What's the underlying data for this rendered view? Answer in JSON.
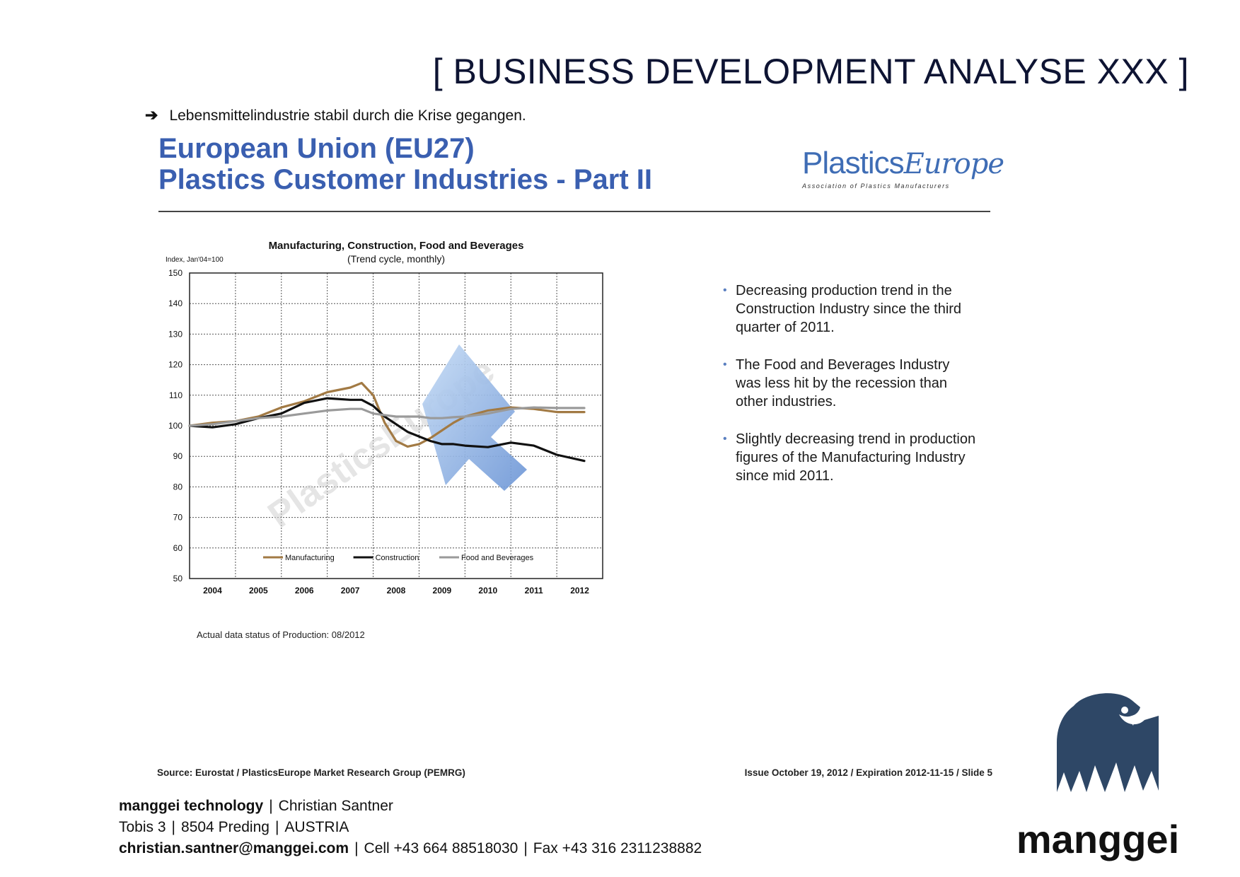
{
  "header": {
    "title": "[ BUSINESS DEVELOPMENT ANALYSE XXX ]"
  },
  "intro": {
    "arrow": "➔",
    "text": "Lebensmittelindustrie stabil durch die Krise gegangen."
  },
  "slide": {
    "title_line1": "European Union (EU27)",
    "title_line2": "Plastics Customer Industries - Part II",
    "logo_word_a": "Plastics",
    "logo_word_b": "Europe",
    "logo_tagline": "Association of Plastics Manufacturers",
    "bullets": [
      "Decreasing production trend in the Construction Industry since the third quarter of 2011.",
      "The Food and Beverages Industry was less hit by the recession than other industries.",
      "Slightly decreasing trend in production figures of the Manufacturing Industry since mid 2011."
    ],
    "bullet_mark": "•",
    "source": "Source: Eurostat / PlasticsEurope Market Research Group (PEMRG)",
    "issue": "Issue October 19, 2012 / Expiration 2012-11-15 / Slide 5",
    "data_status": "Actual data status of Production: 08/2012",
    "watermark": "PlasticsEurope"
  },
  "chart_data": {
    "type": "line",
    "title": "Manufacturing, Construction, Food and Beverages",
    "subtitle": "(Trend cycle, monthly)",
    "ylabel": "Index, Jan'04=100",
    "xlabel": "",
    "ylim": [
      50,
      150
    ],
    "yticks": [
      50,
      60,
      70,
      80,
      90,
      100,
      110,
      120,
      130,
      140,
      150
    ],
    "xlim": [
      2004.0,
      2013.0
    ],
    "xticks": [
      "2004",
      "2005",
      "2006",
      "2007",
      "2008",
      "2009",
      "2010",
      "2011",
      "2012"
    ],
    "grid": true,
    "legend_position": "bottom-inside",
    "series": [
      {
        "name": "Manufacturing",
        "color": "#a27a44",
        "x": [
          2004.0,
          2004.5,
          2005.0,
          2005.5,
          2006.0,
          2006.5,
          2007.0,
          2007.5,
          2007.75,
          2008.0,
          2008.25,
          2008.5,
          2008.75,
          2009.0,
          2009.25,
          2009.5,
          2009.75,
          2010.0,
          2010.5,
          2011.0,
          2011.5,
          2012.0,
          2012.6
        ],
        "values": [
          100,
          101,
          101.5,
          103,
          106,
          108,
          111,
          112.5,
          114,
          110,
          101,
          95,
          93.2,
          94,
          96,
          98.5,
          101,
          103,
          105,
          106,
          105.5,
          104.5,
          104.5
        ]
      },
      {
        "name": "Construction",
        "color": "#111111",
        "x": [
          2004.0,
          2004.5,
          2005.0,
          2005.5,
          2006.0,
          2006.5,
          2007.0,
          2007.5,
          2007.75,
          2008.0,
          2008.25,
          2008.5,
          2008.75,
          2009.0,
          2009.25,
          2009.5,
          2009.75,
          2010.0,
          2010.5,
          2011.0,
          2011.5,
          2012.0,
          2012.6
        ],
        "values": [
          100,
          99.5,
          100.5,
          102.5,
          104,
          107.5,
          109,
          108.5,
          108.5,
          106.5,
          103,
          100.5,
          98,
          96.5,
          95,
          94,
          94,
          93.5,
          93,
          94.5,
          93.5,
          90.5,
          88.5
        ]
      },
      {
        "name": "Food and Beverages",
        "color": "#9a9a9a",
        "x": [
          2004.0,
          2004.5,
          2005.0,
          2005.5,
          2006.0,
          2006.5,
          2007.0,
          2007.5,
          2007.75,
          2008.0,
          2008.25,
          2008.5,
          2008.75,
          2009.0,
          2009.25,
          2009.5,
          2009.75,
          2010.0,
          2010.5,
          2011.0,
          2011.5,
          2012.0,
          2012.6
        ],
        "values": [
          100,
          100.5,
          101.5,
          102.5,
          103,
          104,
          105,
          105.5,
          105.5,
          104,
          103.5,
          103,
          103,
          103,
          102.5,
          102.5,
          102.8,
          103,
          104,
          105.5,
          106,
          105.8,
          105.8
        ]
      }
    ]
  },
  "footer": {
    "company": "manggei technology",
    "person": "Christian Santner",
    "street": "Tobis 3",
    "city": "8504 Preding",
    "country": "AUSTRIA",
    "email": "christian.santner@manggei.com",
    "cell": "Cell +43 664 88518030",
    "fax": "Fax +43 316 2311238882",
    "separator": "|"
  },
  "brand": {
    "logo_text": "manggei",
    "logo_color": "#2e4766"
  }
}
